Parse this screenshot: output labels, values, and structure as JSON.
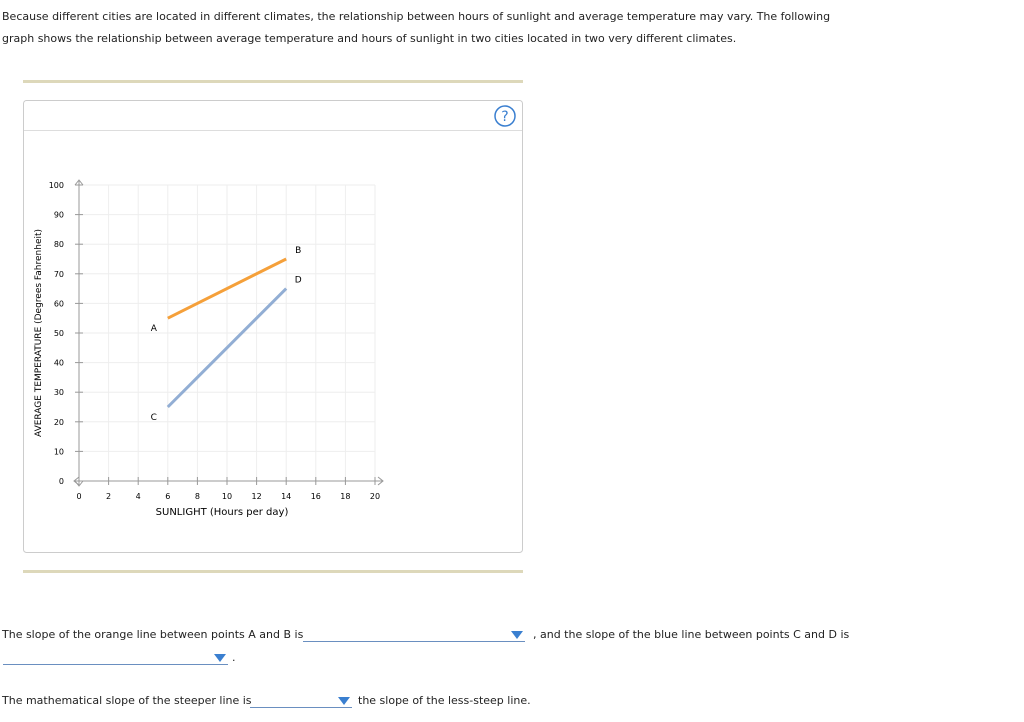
{
  "intro": "Because different cities are located in different climates, the relationship between hours of sunlight and average temperature may vary. The following graph shows the relationship between average temperature and hours of sunlight in two cities located in two very different climates.",
  "help": "?",
  "chart": {
    "type": "line",
    "xlabel": "SUNLIGHT (Hours per day)",
    "ylabel": "AVERAGE TEMPERATURE (Degrees Fahrenheit)",
    "xlim": [
      0,
      20
    ],
    "ylim": [
      0,
      100
    ],
    "xticks": [
      0,
      2,
      4,
      6,
      8,
      10,
      12,
      14,
      16,
      18,
      20
    ],
    "yticks": [
      0,
      10,
      20,
      30,
      40,
      50,
      60,
      70,
      80,
      90,
      100
    ],
    "grid": true,
    "series": [
      {
        "color": "#f5a03a",
        "x": [
          6,
          14
        ],
        "values": [
          55,
          75
        ],
        "point_labels": [
          "A",
          "B"
        ]
      },
      {
        "color": "#92aed4",
        "x": [
          6,
          14
        ],
        "values": [
          25,
          65
        ],
        "point_labels": [
          "C",
          "D"
        ]
      }
    ]
  },
  "questions": {
    "q1_before": "The slope of the orange line between points A and B is",
    "q1_middle": ", and the slope of the blue line between points C and D is",
    "q1_end": ".",
    "q2_before": "The mathematical slope of the steeper line is",
    "q2_after": "the slope of the less-steep line."
  }
}
